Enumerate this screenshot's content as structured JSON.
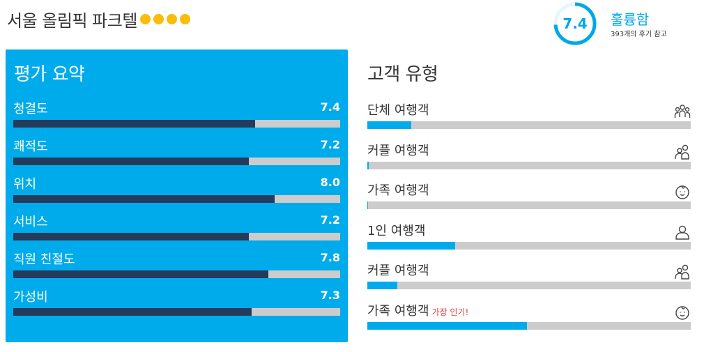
{
  "hotel": {
    "name": "서울 올림픽 파크텔",
    "rating_dots": 4,
    "dot_color": "#f9bd0a"
  },
  "score": {
    "value": "7.4",
    "label": "훌륭함",
    "reviews": "393개의 후기 참고",
    "fraction": 0.74,
    "color": "#00a8e8"
  },
  "summary": {
    "title": "평가 요약",
    "items": [
      {
        "label": "청결도",
        "value": "7.4",
        "fraction": 0.74
      },
      {
        "label": "쾌적도",
        "value": "7.2",
        "fraction": 0.72
      },
      {
        "label": "위치",
        "value": "8.0",
        "fraction": 0.8
      },
      {
        "label": "서비스",
        "value": "7.2",
        "fraction": 0.72
      },
      {
        "label": "직원 친절도",
        "value": "7.8",
        "fraction": 0.78
      },
      {
        "label": "가성비",
        "value": "7.3",
        "fraction": 0.73
      }
    ]
  },
  "traveler_types": {
    "title": "고객 유형",
    "items": [
      {
        "label": "단체 여행객",
        "icon": "group-icon",
        "fraction": 0.135
      },
      {
        "label": "커플 여행객",
        "icon": "couple-icon",
        "fraction": 0.005
      },
      {
        "label": "가족 여행객",
        "icon": "family-icon",
        "fraction": 0.003
      },
      {
        "label": "1인 여행객",
        "icon": "solo-icon",
        "fraction": 0.272
      },
      {
        "label": "커플 여행객",
        "icon": "couple-icon",
        "fraction": 0.093
      },
      {
        "label": "가족 여행객",
        "icon": "family-icon",
        "fraction": 0.493,
        "badge": "가장 인기!"
      }
    ]
  }
}
